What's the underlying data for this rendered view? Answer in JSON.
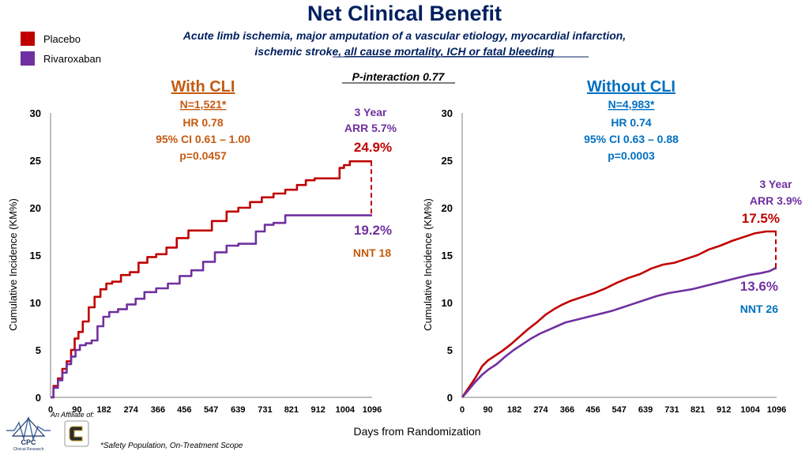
{
  "colors": {
    "placebo": "#C00000",
    "rivaroxaban": "#7030A0",
    "title": "#002060",
    "cli": "#C55A11",
    "no_cli": "#0070C0"
  },
  "header": {
    "title": "Net Clinical Benefit",
    "subtitle_line1": "Acute limb ischemia, major amputation of a vascular etiology, myocardial infarction,",
    "subtitle_line2_a": "ischemic stroke, ",
    "subtitle_line2_b": "all cause mortality, ICH or fatal bleeding",
    "p_interaction": "P-interaction 0.77"
  },
  "legend": [
    {
      "label": "Placebo",
      "color": "#C00000"
    },
    {
      "label": "Rivaroxaban",
      "color": "#7030A0"
    }
  ],
  "footer": {
    "x_axis_title": "Days from Randomization",
    "affiliate": "An Affiliate of:",
    "cpc_logo_text": "CPC",
    "cpc_logo_sub": "Clinical Research",
    "footnote": "*Safety Population, On-Treatment Scope"
  },
  "chart_data": [
    {
      "type": "line",
      "name": "with-cli",
      "title": "With CLI",
      "n_label": "N=1,521*",
      "hr": "HR 0.78",
      "ci": "95% CI 0.61 – 1.00",
      "p": "p=0.0457",
      "arr_line1": "3 Year",
      "arr_line2": "ARR 5.7%",
      "placebo_end_label": "24.9%",
      "rivaroxaban_end_label": "19.2%",
      "nnt": "NNT 18",
      "xlabel": "Days from Randomization",
      "ylabel": "Cumulative Incidence (KM%)",
      "xlim": [
        0,
        1096
      ],
      "ylim": [
        0,
        30
      ],
      "x_ticks": [
        0,
        90,
        182,
        274,
        366,
        456,
        547,
        639,
        731,
        821,
        912,
        1004,
        1096
      ],
      "y_ticks": [
        0,
        5,
        10,
        15,
        20,
        25,
        30
      ],
      "series": [
        {
          "name": "Placebo",
          "x": [
            0,
            10,
            25,
            40,
            55,
            70,
            82,
            95,
            110,
            130,
            150,
            170,
            190,
            210,
            240,
            270,
            300,
            330,
            360,
            395,
            430,
            470,
            510,
            550,
            600,
            640,
            680,
            720,
            760,
            800,
            840,
            870,
            900,
            930,
            960,
            985,
            1000,
            1020,
            1040,
            1060,
            1080,
            1096
          ],
          "y": [
            0,
            1.2,
            2.0,
            3.0,
            3.8,
            5.0,
            6.2,
            6.9,
            8.0,
            9.5,
            10.6,
            11.4,
            12.0,
            12.2,
            12.9,
            13.2,
            14.2,
            14.8,
            15.1,
            15.8,
            16.8,
            17.6,
            17.6,
            18.6,
            19.6,
            20.0,
            20.6,
            21.1,
            21.5,
            21.9,
            22.4,
            22.9,
            23.1,
            23.1,
            23.1,
            24.2,
            24.5,
            24.9,
            24.9,
            24.9,
            24.9,
            24.9
          ]
        },
        {
          "name": "Rivaroxaban",
          "x": [
            0,
            10,
            25,
            40,
            55,
            70,
            85,
            100,
            120,
            140,
            160,
            180,
            200,
            230,
            260,
            290,
            320,
            360,
            400,
            440,
            480,
            520,
            560,
            600,
            640,
            670,
            700,
            730,
            760,
            780,
            800,
            840,
            880,
            920,
            960,
            1000,
            1040,
            1096
          ],
          "y": [
            0,
            1.0,
            1.8,
            2.6,
            3.5,
            4.3,
            5.0,
            5.5,
            5.7,
            6.0,
            7.5,
            8.5,
            9.0,
            9.3,
            9.8,
            10.4,
            11.1,
            11.5,
            12.0,
            12.8,
            13.4,
            14.3,
            15.3,
            16.0,
            16.2,
            16.2,
            17.5,
            18.2,
            18.4,
            18.4,
            19.2,
            19.2,
            19.2,
            19.2,
            19.2,
            19.2,
            19.2,
            19.2
          ]
        }
      ]
    },
    {
      "type": "line",
      "name": "without-cli",
      "title": "Without CLI",
      "n_label": "N=4,983*",
      "hr": "HR 0.74",
      "ci": "95% CI 0.63 – 0.88",
      "p": "p=0.0003",
      "arr_line1": "3 Year",
      "arr_line2": "ARR 3.9%",
      "placebo_end_label": "17.5%",
      "rivaroxaban_end_label": "13.6%",
      "nnt": "NNT 26",
      "xlabel": "Days from Randomization",
      "ylabel": "Cumulative Incidence (KM%)",
      "xlim": [
        0,
        1096
      ],
      "ylim": [
        0,
        30
      ],
      "x_ticks": [
        0,
        90,
        182,
        274,
        366,
        456,
        547,
        639,
        731,
        821,
        912,
        1004,
        1096
      ],
      "y_ticks": [
        0,
        5,
        10,
        15,
        20,
        25,
        30
      ],
      "series": [
        {
          "name": "Placebo",
          "x": [
            0,
            20,
            45,
            70,
            90,
            110,
            140,
            170,
            200,
            230,
            260,
            290,
            320,
            350,
            380,
            420,
            460,
            500,
            540,
            580,
            620,
            660,
            700,
            740,
            780,
            820,
            860,
            900,
            940,
            980,
            1020,
            1060,
            1080,
            1096
          ],
          "y": [
            0,
            0.9,
            2.0,
            3.3,
            3.9,
            4.3,
            4.9,
            5.6,
            6.4,
            7.2,
            7.9,
            8.7,
            9.3,
            9.8,
            10.2,
            10.6,
            11.0,
            11.5,
            12.1,
            12.6,
            13.0,
            13.6,
            14.0,
            14.2,
            14.6,
            15.0,
            15.6,
            16.0,
            16.5,
            16.9,
            17.3,
            17.5,
            17.5,
            17.5
          ]
        },
        {
          "name": "Rivaroxaban",
          "x": [
            0,
            20,
            45,
            70,
            90,
            120,
            150,
            180,
            210,
            240,
            270,
            300,
            330,
            360,
            400,
            440,
            480,
            520,
            560,
            600,
            640,
            680,
            720,
            760,
            800,
            840,
            880,
            920,
            960,
            1000,
            1040,
            1070,
            1090,
            1096
          ],
          "y": [
            0,
            0.7,
            1.6,
            2.4,
            2.9,
            3.5,
            4.3,
            5.0,
            5.6,
            6.2,
            6.7,
            7.1,
            7.5,
            7.9,
            8.2,
            8.5,
            8.8,
            9.1,
            9.5,
            9.9,
            10.3,
            10.7,
            11.0,
            11.2,
            11.4,
            11.7,
            12.0,
            12.3,
            12.6,
            12.9,
            13.1,
            13.3,
            13.6,
            13.6
          ]
        }
      ]
    }
  ]
}
